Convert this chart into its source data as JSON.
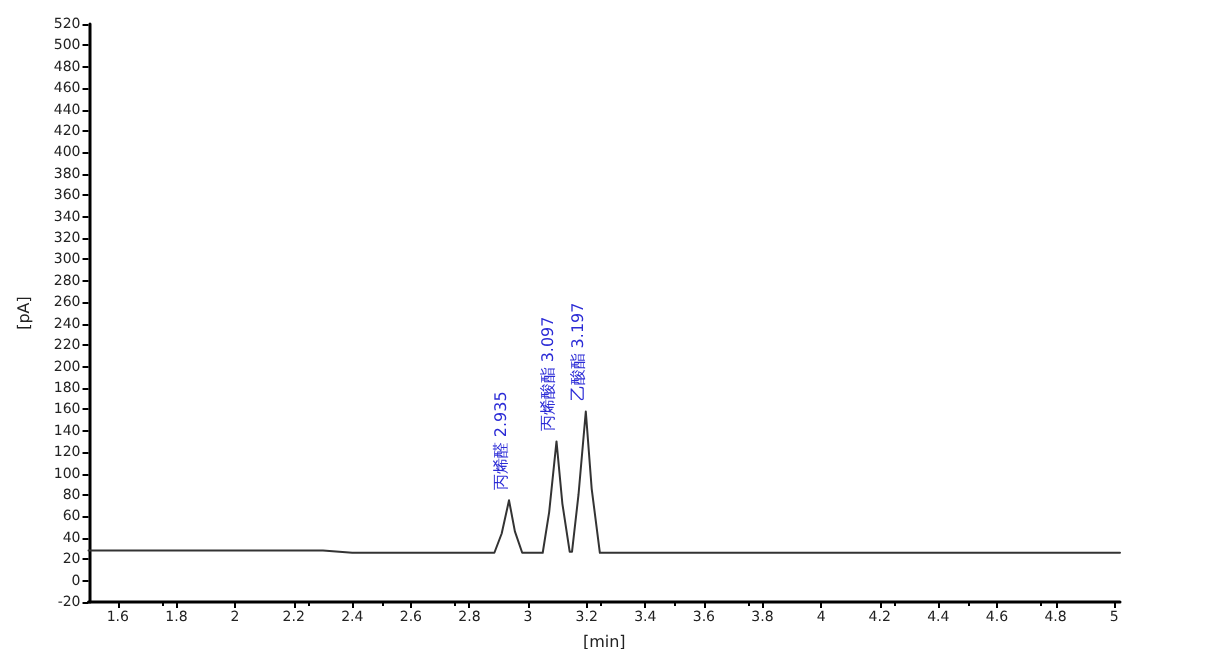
{
  "chart_data": {
    "type": "line",
    "xlabel": "[min]",
    "ylabel": "[pA]",
    "xlim": [
      1.5,
      5.02
    ],
    "xticks": [
      1.6,
      1.8,
      2,
      2.2,
      2.4,
      2.6,
      2.8,
      3,
      3.2,
      3.4,
      3.6,
      3.8,
      4,
      4.2,
      4.4,
      4.6,
      4.8,
      5
    ],
    "ylim": [
      -20,
      520
    ],
    "yticks": [
      -20,
      0,
      20,
      40,
      60,
      80,
      100,
      120,
      140,
      160,
      180,
      200,
      220,
      240,
      260,
      280,
      300,
      320,
      340,
      360,
      380,
      400,
      420,
      440,
      460,
      480,
      500,
      520
    ],
    "marker": "none",
    "line_style": "solid",
    "series": [
      {
        "color": "#333333",
        "x": [
          1.5,
          2.0,
          2.3,
          2.4,
          2.8,
          2.885,
          2.91,
          2.935,
          2.955,
          2.98,
          3.05,
          3.072,
          3.097,
          3.117,
          3.142,
          3.15,
          3.172,
          3.197,
          3.217,
          3.245,
          3.4,
          4.0,
          5.02
        ],
        "values": [
          28,
          28,
          28,
          26,
          26,
          26,
          44,
          75,
          46,
          26,
          26,
          64,
          130,
          72,
          27,
          27,
          80,
          158,
          86,
          26,
          26,
          26,
          26
        ]
      }
    ],
    "annotations": [
      {
        "text": "丙烯醛 2.935",
        "x": 2.935,
        "y": 75
      },
      {
        "text": "丙烯酸酯 3.097",
        "x": 3.097,
        "y": 130
      },
      {
        "text": "乙酸酯 3.197",
        "x": 3.197,
        "y": 158
      }
    ]
  }
}
